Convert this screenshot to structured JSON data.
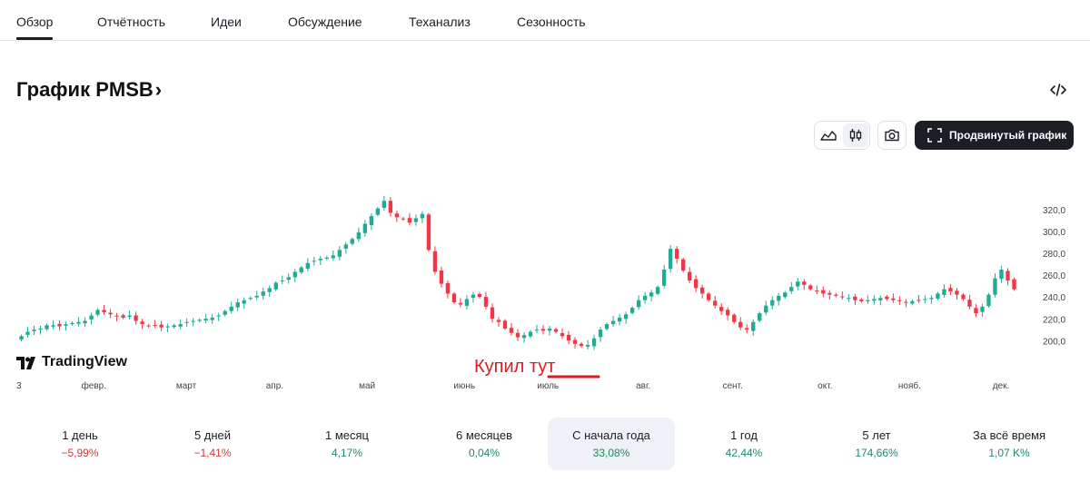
{
  "tabs": [
    {
      "label": "Обзор",
      "active": true
    },
    {
      "label": "Отчётность",
      "active": false
    },
    {
      "label": "Идеи",
      "active": false
    },
    {
      "label": "Обсуждение",
      "active": false
    },
    {
      "label": "Теханализ",
      "active": false
    },
    {
      "label": "Сезонность",
      "active": false
    }
  ],
  "header": {
    "title": "График PMSB",
    "title_chevron": "›",
    "embed_icon": "code-icon"
  },
  "toolbar": {
    "area_chart_icon": "area-chart-icon",
    "candles_icon": "candlestick-icon",
    "selected": "candles",
    "snapshot_icon": "camera-icon",
    "advanced_label": "Продвинутый график",
    "advanced_icon": "fullscreen-icon"
  },
  "watermark": {
    "text": "TradingView",
    "icon": "tradingview-logo-icon"
  },
  "annotation": {
    "text": "Купил тут",
    "color": "#d81c22"
  },
  "colors": {
    "up": "#22ab94",
    "down": "#f23645",
    "accent": "#1b1e24",
    "negative": "#d33a3a",
    "positive": "#1e8a5e"
  },
  "chart_data": {
    "type": "candlestick",
    "ylim": [
      182,
      335
    ],
    "y_ticks": [
      "320,0",
      "300,0",
      "280,0",
      "260,0",
      "240,0",
      "220,0",
      "200,0"
    ],
    "y_tick_values": [
      320,
      300,
      280,
      260,
      240,
      220,
      200
    ],
    "x_ticks": [
      "3",
      "февр.",
      "март",
      "апр.",
      "май",
      "июнь",
      "июль",
      "авг.",
      "сент.",
      "окт.",
      "нояб.",
      "дек."
    ],
    "x_tick_positions": [
      0,
      0.077,
      0.171,
      0.261,
      0.355,
      0.454,
      0.539,
      0.636,
      0.727,
      0.821,
      0.907,
      1.0
    ],
    "close": [
      205,
      209,
      211,
      212,
      215,
      215,
      214,
      216,
      217,
      218,
      219,
      224,
      229,
      227,
      225,
      223,
      222,
      224,
      219,
      216,
      214,
      215,
      213,
      214,
      215,
      216,
      218,
      219,
      220,
      221,
      222,
      224,
      228,
      232,
      236,
      238,
      240,
      242,
      246,
      249,
      254,
      256,
      259,
      264,
      268,
      272,
      274,
      276,
      277,
      279,
      284,
      289,
      294,
      300,
      308,
      315,
      322,
      329,
      318,
      314,
      312,
      309,
      313,
      317,
      284,
      264,
      253,
      244,
      236,
      234,
      239,
      243,
      241,
      232,
      221,
      218,
      212,
      208,
      204,
      206,
      209,
      211,
      210,
      212,
      209,
      205,
      201,
      198,
      196,
      197,
      203,
      211,
      216,
      219,
      222,
      225,
      231,
      238,
      242,
      245,
      250,
      266,
      285,
      276,
      265,
      256,
      249,
      244,
      238,
      233,
      228,
      224,
      218,
      213,
      211,
      218,
      226,
      233,
      238,
      242,
      245,
      250,
      255,
      252,
      248,
      246,
      244,
      243,
      242,
      241,
      240,
      238,
      237,
      238,
      239,
      240,
      239,
      238,
      237,
      236,
      237,
      238,
      239,
      240,
      244,
      248,
      246,
      243,
      239,
      232,
      226,
      232,
      243,
      258,
      266,
      256,
      248
    ]
  },
  "periods": [
    {
      "label": "1 день",
      "value": "−5,99%",
      "sign": "negative",
      "active": false
    },
    {
      "label": "5 дней",
      "value": "−1,41%",
      "sign": "negative",
      "active": false
    },
    {
      "label": "1 месяц",
      "value": "4,17%",
      "sign": "positive",
      "active": false
    },
    {
      "label": "6 месяцев",
      "value": "0,04%",
      "sign": "positive",
      "active": false
    },
    {
      "label": "С начала года",
      "value": "33,08%",
      "sign": "positive",
      "active": true
    },
    {
      "label": "1 год",
      "value": "42,44%",
      "sign": "positive",
      "active": false
    },
    {
      "label": "5 лет",
      "value": "174,66%",
      "sign": "positive",
      "active": false
    },
    {
      "label": "За всё время",
      "value": "1,07 K%",
      "sign": "positive",
      "active": false
    }
  ]
}
